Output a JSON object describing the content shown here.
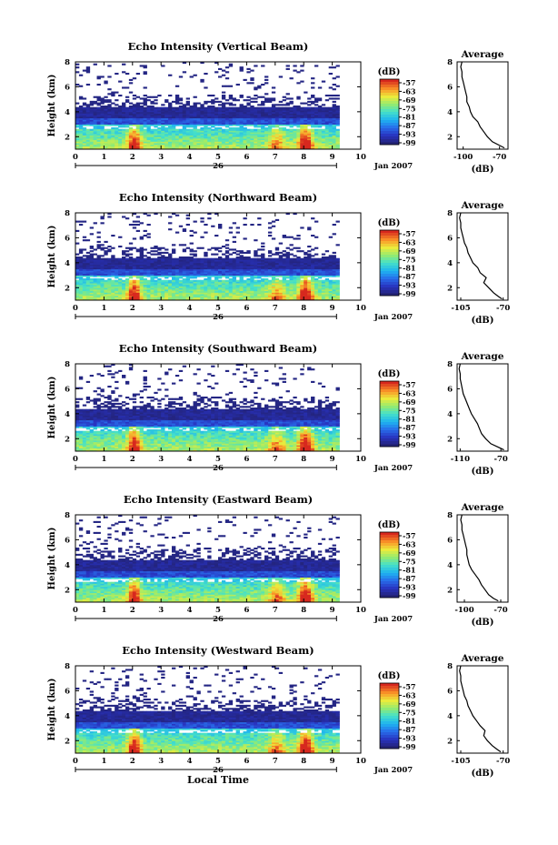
{
  "chart_data": [
    {
      "type": "heatmap",
      "title": "Echo Intensity (Vertical Beam)",
      "ylabel": "Height (km)",
      "xlim": [
        0,
        10
      ],
      "ylim": [
        1,
        8
      ],
      "x_ticks": [
        "0",
        "1",
        "2",
        "3",
        "4",
        "5",
        "6",
        "7",
        "8",
        "9",
        "10"
      ],
      "y_ticks": [
        "2",
        "4",
        "6",
        "8"
      ],
      "date_marker": "26",
      "date_label": "Jan 2007",
      "colorbar": {
        "unit": "(dB)",
        "labels": [
          "-57",
          "-63",
          "-69",
          "-75",
          "-81",
          "-87",
          "-93",
          "-99"
        ]
      },
      "average": {
        "title": "Average",
        "xlabel": "(dB)",
        "x_ticks": [
          "-100",
          "-70"
        ],
        "xlim": [
          -105,
          -63
        ],
        "ylim": [
          1,
          8
        ],
        "y_ticks": [
          "2",
          "4",
          "6",
          "8"
        ],
        "profile": [
          [
            1.1,
            -66
          ],
          [
            1.3,
            -70
          ],
          [
            1.6,
            -76
          ],
          [
            2.0,
            -80
          ],
          [
            2.4,
            -83
          ],
          [
            2.8,
            -86
          ],
          [
            3.2,
            -88
          ],
          [
            3.6,
            -92
          ],
          [
            4.0,
            -94
          ],
          [
            4.4,
            -95
          ],
          [
            4.8,
            -97
          ],
          [
            5.2,
            -97
          ],
          [
            5.6,
            -98
          ],
          [
            6.0,
            -99
          ],
          [
            6.4,
            -100
          ],
          [
            6.8,
            -101
          ],
          [
            7.2,
            -101
          ],
          [
            7.6,
            -102
          ],
          [
            8.0,
            -101
          ]
        ]
      }
    },
    {
      "type": "heatmap",
      "title": "Echo Intensity (Northward Beam)",
      "ylabel": "Height (km)",
      "xlim": [
        0,
        10
      ],
      "ylim": [
        1,
        8
      ],
      "x_ticks": [
        "0",
        "1",
        "2",
        "3",
        "4",
        "5",
        "6",
        "7",
        "8",
        "9",
        "10"
      ],
      "y_ticks": [
        "2",
        "4",
        "6",
        "8"
      ],
      "date_marker": "26",
      "date_label": "Jan 2007",
      "colorbar": {
        "unit": "(dB)",
        "labels": [
          "-57",
          "-63",
          "-69",
          "-75",
          "-81",
          "-87",
          "-93",
          "-99"
        ]
      },
      "average": {
        "title": "Average",
        "xlabel": "(dB)",
        "x_ticks": [
          "-105",
          "-70"
        ],
        "xlim": [
          -108,
          -66
        ],
        "ylim": [
          1,
          8
        ],
        "y_ticks": [
          "2",
          "4",
          "6",
          "8"
        ],
        "profile": [
          [
            1.1,
            -71
          ],
          [
            1.3,
            -74
          ],
          [
            1.6,
            -78
          ],
          [
            2.0,
            -82
          ],
          [
            2.4,
            -86
          ],
          [
            2.8,
            -84
          ],
          [
            3.2,
            -89
          ],
          [
            3.6,
            -91
          ],
          [
            4.0,
            -95
          ],
          [
            4.4,
            -97
          ],
          [
            4.8,
            -99
          ],
          [
            5.2,
            -100
          ],
          [
            5.6,
            -102
          ],
          [
            6.0,
            -103
          ],
          [
            6.4,
            -104
          ],
          [
            6.8,
            -105
          ],
          [
            7.2,
            -105
          ],
          [
            7.6,
            -106
          ],
          [
            8.0,
            -105
          ]
        ]
      }
    },
    {
      "type": "heatmap",
      "title": "Echo Intensity (Southward Beam)",
      "ylabel": "Height (km)",
      "xlim": [
        0,
        10
      ],
      "ylim": [
        1,
        8
      ],
      "x_ticks": [
        "0",
        "1",
        "2",
        "3",
        "4",
        "5",
        "6",
        "7",
        "8",
        "9",
        "10"
      ],
      "y_ticks": [
        "2",
        "4",
        "6",
        "8"
      ],
      "date_marker": "26",
      "date_label": "Jan 2007",
      "colorbar": {
        "unit": "(dB)",
        "labels": [
          "-57",
          "-63",
          "-69",
          "-75",
          "-81",
          "-87",
          "-93",
          "-99"
        ]
      },
      "average": {
        "title": "Average",
        "xlabel": "(dB)",
        "x_ticks": [
          "-110",
          "-70"
        ],
        "xlim": [
          -113,
          -63
        ],
        "ylim": [
          1,
          8
        ],
        "y_ticks": [
          "2",
          "4",
          "6",
          "8"
        ],
        "profile": [
          [
            1.1,
            -67
          ],
          [
            1.3,
            -72
          ],
          [
            1.6,
            -80
          ],
          [
            2.0,
            -85
          ],
          [
            2.4,
            -89
          ],
          [
            2.8,
            -91
          ],
          [
            3.2,
            -93
          ],
          [
            3.6,
            -96
          ],
          [
            4.0,
            -99
          ],
          [
            4.4,
            -101
          ],
          [
            4.8,
            -103
          ],
          [
            5.2,
            -105
          ],
          [
            5.6,
            -107
          ],
          [
            6.0,
            -108
          ],
          [
            6.4,
            -109
          ],
          [
            6.8,
            -110
          ],
          [
            7.2,
            -110
          ],
          [
            7.6,
            -111
          ],
          [
            8.0,
            -110
          ]
        ]
      }
    },
    {
      "type": "heatmap",
      "title": "Echo Intensity (Eastward Beam)",
      "ylabel": "Height (km)",
      "xlim": [
        0,
        10
      ],
      "ylim": [
        1,
        8
      ],
      "x_ticks": [
        "0",
        "1",
        "2",
        "3",
        "4",
        "5",
        "6",
        "7",
        "8",
        "9",
        "10"
      ],
      "y_ticks": [
        "2",
        "4",
        "6",
        "8"
      ],
      "date_marker": "26",
      "date_label": "Jan 2007",
      "colorbar": {
        "unit": "(dB)",
        "labels": [
          "-57",
          "-63",
          "-69",
          "-75",
          "-81",
          "-87",
          "-93",
          "-99"
        ]
      },
      "average": {
        "title": "Average",
        "xlabel": "(dB)",
        "x_ticks": [
          "-100",
          "-70"
        ],
        "xlim": [
          -106,
          -64
        ],
        "ylim": [
          1,
          8
        ],
        "y_ticks": [
          "2",
          "4",
          "6",
          "8"
        ],
        "profile": [
          [
            1.1,
            -72
          ],
          [
            1.3,
            -76
          ],
          [
            1.6,
            -80
          ],
          [
            2.0,
            -83
          ],
          [
            2.4,
            -86
          ],
          [
            2.8,
            -88
          ],
          [
            3.2,
            -91
          ],
          [
            3.6,
            -94
          ],
          [
            4.0,
            -96
          ],
          [
            4.4,
            -97
          ],
          [
            4.8,
            -98
          ],
          [
            5.2,
            -98
          ],
          [
            5.6,
            -99
          ],
          [
            6.0,
            -100
          ],
          [
            6.4,
            -101
          ],
          [
            6.8,
            -102
          ],
          [
            7.2,
            -102
          ],
          [
            7.6,
            -103
          ],
          [
            8.0,
            -102
          ]
        ]
      }
    },
    {
      "type": "heatmap",
      "title": "Echo Intensity (Westward Beam)",
      "ylabel": "Height (km)",
      "xlabel": "Local Time",
      "xlim": [
        0,
        10
      ],
      "ylim": [
        1,
        8
      ],
      "x_ticks": [
        "0",
        "1",
        "2",
        "3",
        "4",
        "5",
        "6",
        "7",
        "8",
        "9",
        "10"
      ],
      "y_ticks": [
        "2",
        "4",
        "6",
        "8"
      ],
      "date_marker": "26",
      "date_label": "Jan 2007",
      "colorbar": {
        "unit": "(dB)",
        "labels": [
          "-57",
          "-63",
          "-69",
          "-75",
          "-81",
          "-87",
          "-93",
          "-99"
        ]
      },
      "average": {
        "title": "Average",
        "xlabel": "(dB)",
        "x_ticks": [
          "-105",
          "-70"
        ],
        "xlim": [
          -108,
          -66
        ],
        "ylim": [
          1,
          8
        ],
        "y_ticks": [
          "2",
          "4",
          "6",
          "8"
        ],
        "profile": [
          [
            1.1,
            -72
          ],
          [
            1.3,
            -75
          ],
          [
            1.6,
            -79
          ],
          [
            2.0,
            -83
          ],
          [
            2.4,
            -86
          ],
          [
            2.8,
            -85
          ],
          [
            3.2,
            -89
          ],
          [
            3.6,
            -92
          ],
          [
            4.0,
            -95
          ],
          [
            4.4,
            -97
          ],
          [
            4.8,
            -99
          ],
          [
            5.2,
            -100
          ],
          [
            5.6,
            -102
          ],
          [
            6.0,
            -103
          ],
          [
            6.4,
            -104
          ],
          [
            6.8,
            -105
          ],
          [
            7.2,
            -105
          ],
          [
            7.6,
            -106
          ],
          [
            8.0,
            -105
          ]
        ]
      }
    }
  ]
}
